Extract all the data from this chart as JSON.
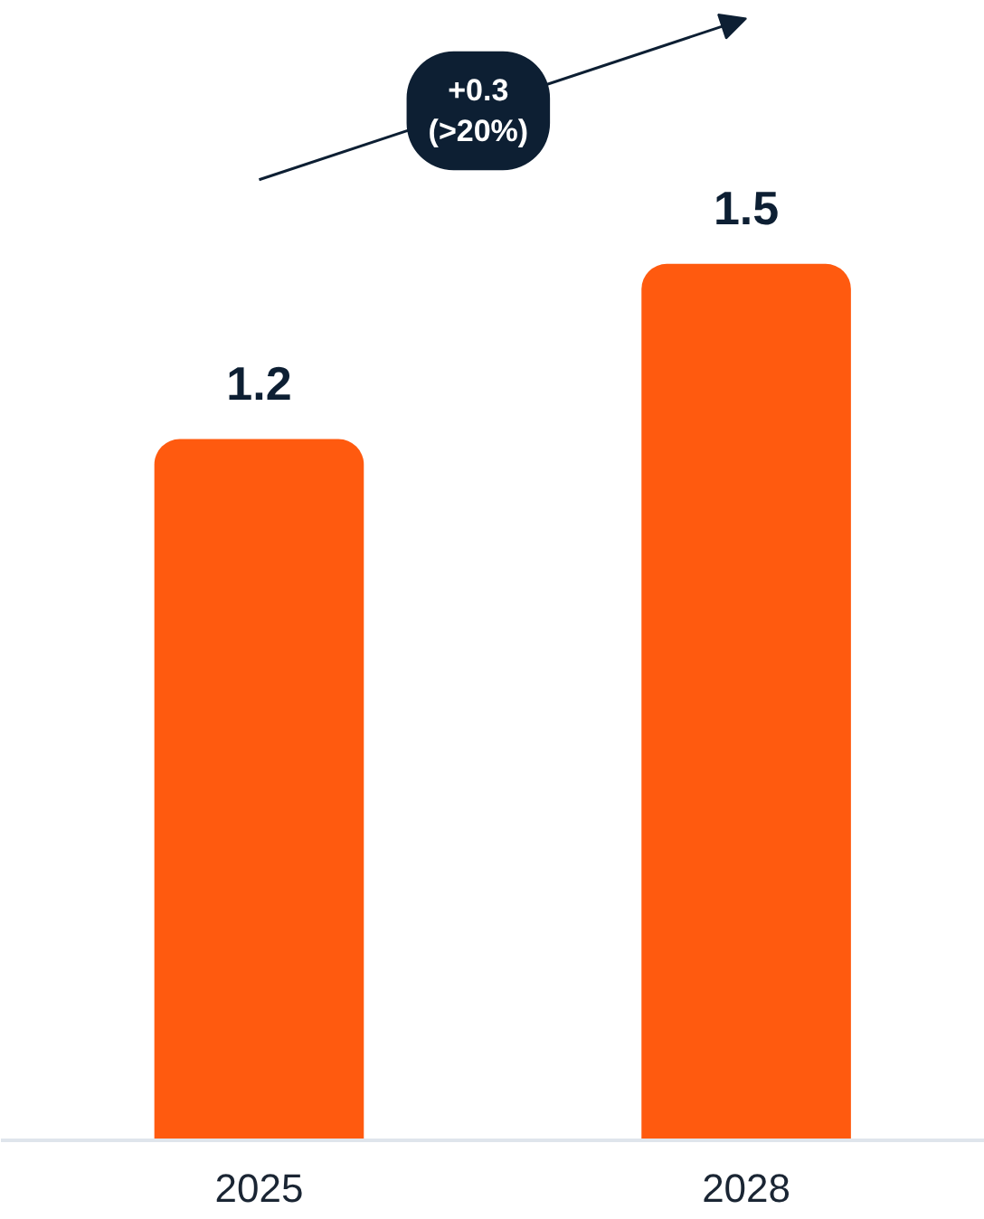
{
  "chart_data": {
    "type": "bar",
    "categories": [
      "2025",
      "2028"
    ],
    "values": [
      1.2,
      1.5
    ],
    "color": "#ff5a0f",
    "data_labels": true,
    "annotations": [
      "+0.3 (>20%)"
    ],
    "tick_labels": "x",
    "grid": false
  }
}
